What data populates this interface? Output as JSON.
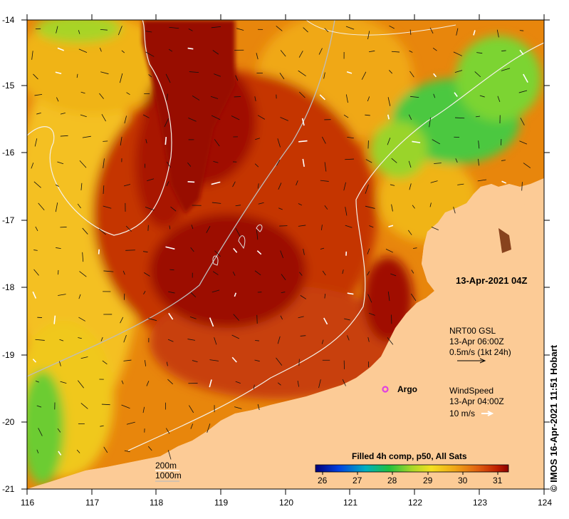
{
  "map": {
    "date_label": "13-Apr-2021 04Z",
    "latitude_ticks": [
      "-14",
      "-15",
      "-16",
      "-17",
      "-18",
      "-19",
      "-20",
      "-21"
    ],
    "longitude_ticks": [
      "116",
      "117",
      "118",
      "119",
      "120",
      "121",
      "122",
      "123",
      "124"
    ],
    "land_color": "#fccb96",
    "sea_colors": [
      "#8b0000",
      "#b51e00",
      "#d94a00",
      "#e8860c",
      "#f0b418",
      "#f4d020",
      "#a8d428",
      "#3cc43c"
    ]
  },
  "currents_legend": {
    "line1": "NRT00 GSL",
    "line2": "13-Apr 06:00Z",
    "line3": "0.5m/s (1kt 24h)"
  },
  "wind_legend": {
    "line1": "WindSpeed",
    "line2": "13-Apr 04:00Z",
    "line3": "10 m/s"
  },
  "argo": {
    "label": "Argo",
    "marker_color": "#e040e0"
  },
  "isobaths": {
    "label_200": "200m",
    "label_1000": "1000m"
  },
  "colorbar": {
    "title": "Filled 4h comp, p50, All Sats",
    "ticks": [
      "26",
      "27",
      "28",
      "29",
      "30",
      "31"
    ]
  },
  "credit": "© IMOS 16-Apr-2021 11:51 Hobart"
}
